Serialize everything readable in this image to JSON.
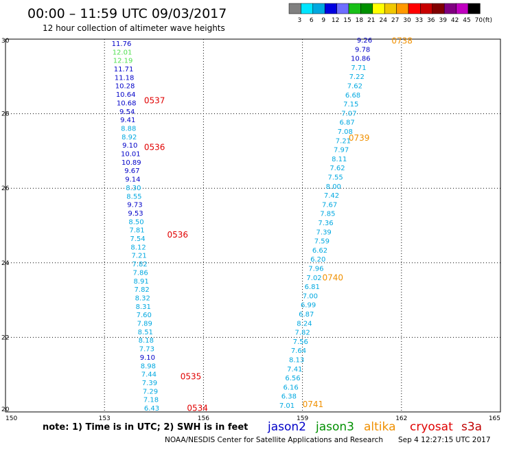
{
  "header": {
    "title": "00:00 – 11:59 UTC 09/03/2017",
    "subtitle": "12 hour collection of altimeter wave heights"
  },
  "color_scale": {
    "colors": [
      "#808080",
      "#00e5ff",
      "#00a8e0",
      "#0000e0",
      "#6e6eff",
      "#18c018",
      "#009000",
      "#ffff00",
      "#f0c800",
      "#ff9900",
      "#ff0000",
      "#c80000",
      "#800000",
      "#800080",
      "#c000c0",
      "#000000"
    ],
    "labels": [
      "3",
      "6",
      "9",
      "12",
      "15",
      "18",
      "21",
      "24",
      "27",
      "30",
      "33",
      "36",
      "39",
      "42",
      "45",
      "70"
    ],
    "unit": "(ft)"
  },
  "map": {
    "x_ticks": [
      "150",
      "153",
      "156",
      "159",
      "162",
      "165"
    ],
    "y_ticks": [
      "30",
      "28",
      "26",
      "24",
      "22",
      "20"
    ]
  },
  "tracks": [
    {
      "values": [
        [
          "11.76",
          "#0000c8"
        ],
        [
          "12.01",
          "#50e050"
        ],
        [
          "12.19",
          "#50e050"
        ],
        [
          "11.71",
          "#0000c8"
        ],
        [
          "11.18",
          "#0000c8"
        ],
        [
          "10.28",
          "#0000c8"
        ],
        [
          "10.64",
          "#0000c8"
        ],
        [
          "10.68",
          "#0000c8"
        ],
        [
          "9.54",
          "#0000c8"
        ],
        [
          "9.41",
          "#0000c8"
        ],
        [
          "8.88",
          "#00a8e0"
        ],
        [
          "8.92",
          "#00a8e0"
        ],
        [
          "9.10",
          "#0000c8"
        ],
        [
          "10.01",
          "#0000c8"
        ],
        [
          "10.89",
          "#0000c8"
        ],
        [
          "9.67",
          "#0000c8"
        ],
        [
          "9.14",
          "#0000c8"
        ],
        [
          "8.30",
          "#00a8e0"
        ],
        [
          "8.55",
          "#00a8e0"
        ],
        [
          "9.73",
          "#0000c8"
        ],
        [
          "9.53",
          "#0000c8"
        ],
        [
          "8.50",
          "#00a8e0"
        ],
        [
          "7.81",
          "#00a8e0"
        ],
        [
          "7.54",
          "#00a8e0"
        ],
        [
          "8.12",
          "#00a8e0"
        ],
        [
          "7.21",
          "#00a8e0"
        ],
        [
          "7.82",
          "#00a8e0"
        ],
        [
          "7.86",
          "#00a8e0"
        ],
        [
          "8.91",
          "#00a8e0"
        ],
        [
          "7.82",
          "#00a8e0"
        ],
        [
          "8.32",
          "#00a8e0"
        ],
        [
          "8.31",
          "#00a8e0"
        ],
        [
          "7.60",
          "#00a8e0"
        ],
        [
          "7.89",
          "#00a8e0"
        ],
        [
          "8.51",
          "#00a8e0"
        ],
        [
          "8.18",
          "#00a8e0"
        ],
        [
          "7.73",
          "#00a8e0"
        ],
        [
          "9.10",
          "#0000c8"
        ],
        [
          "8.98",
          "#00a8e0"
        ],
        [
          "7.44",
          "#00a8e0"
        ],
        [
          "7.39",
          "#00a8e0"
        ],
        [
          "7.29",
          "#00a8e0"
        ],
        [
          "7.18",
          "#00a8e0"
        ],
        [
          "6.43",
          "#00a8e0"
        ]
      ],
      "times": [
        {
          "label": "0537",
          "lat": 28.35,
          "lon": 154.2,
          "color": "#e00000"
        },
        {
          "label": "0536",
          "lat": 27.1,
          "lon": 154.2,
          "color": "#e00000"
        },
        {
          "label": "0536",
          "lat": 24.75,
          "lon": 154.9,
          "color": "#e00000"
        },
        {
          "label": "0535",
          "lat": 20.95,
          "lon": 155.3,
          "color": "#e00000"
        },
        {
          "label": "0534",
          "lat": 20.1,
          "lon": 155.5,
          "color": "#e00000"
        }
      ]
    },
    {
      "values": [
        [
          "9.26",
          "#0000c8"
        ],
        [
          "9.78",
          "#0000c8"
        ],
        [
          "10.86",
          "#0000c8"
        ],
        [
          "7.71",
          "#00a8e0"
        ],
        [
          "7.22",
          "#00a8e0"
        ],
        [
          "7.62",
          "#00a8e0"
        ],
        [
          "6.68",
          "#00a8e0"
        ],
        [
          "7.15",
          "#00a8e0"
        ],
        [
          "7.07",
          "#00a8e0"
        ],
        [
          "6.87",
          "#00a8e0"
        ],
        [
          "7.08",
          "#00a8e0"
        ],
        [
          "7.21",
          "#00a8e0"
        ],
        [
          "7.97",
          "#00a8e0"
        ],
        [
          "8.11",
          "#00a8e0"
        ],
        [
          "7.62",
          "#00a8e0"
        ],
        [
          "7.55",
          "#00a8e0"
        ],
        [
          "8.00",
          "#00a8e0"
        ],
        [
          "7.42",
          "#00a8e0"
        ],
        [
          "7.67",
          "#00a8e0"
        ],
        [
          "7.85",
          "#00a8e0"
        ],
        [
          "7.36",
          "#00a8e0"
        ],
        [
          "7.39",
          "#00a8e0"
        ],
        [
          "7.59",
          "#00a8e0"
        ],
        [
          "6.62",
          "#00a8e0"
        ],
        [
          "6.20",
          "#00a8e0"
        ],
        [
          "7.96",
          "#00a8e0"
        ],
        [
          "7.02",
          "#00a8e0"
        ],
        [
          "6.81",
          "#00a8e0"
        ],
        [
          "7.00",
          "#00a8e0"
        ],
        [
          "6.99",
          "#00a8e0"
        ],
        [
          "6.87",
          "#00a8e0"
        ],
        [
          "8.24",
          "#00a8e0"
        ],
        [
          "7.82",
          "#00a8e0"
        ],
        [
          "7.56",
          "#00a8e0"
        ],
        [
          "7.64",
          "#00a8e0"
        ],
        [
          "8.13",
          "#00a8e0"
        ],
        [
          "7.41",
          "#00a8e0"
        ],
        [
          "6.56",
          "#00a8e0"
        ],
        [
          "6.16",
          "#00a8e0"
        ],
        [
          "6.38",
          "#00a8e0"
        ],
        [
          "7.01",
          "#00a8e0"
        ]
      ],
      "times": [
        {
          "label": "0738",
          "lat": 29.95,
          "lon": 161.7,
          "color": "#f09000"
        },
        {
          "label": "0739",
          "lat": 27.35,
          "lon": 160.4,
          "color": "#f09000"
        },
        {
          "label": "0740",
          "lat": 23.6,
          "lon": 159.6,
          "color": "#f09000"
        },
        {
          "label": "0741",
          "lat": 20.2,
          "lon": 159.0,
          "color": "#f09000"
        }
      ]
    }
  ],
  "footer": {
    "note": "note: 1) Time is in UTC; 2) SWH is in feet",
    "legend": [
      {
        "name": "jason2",
        "color": "#0000c8"
      },
      {
        "name": "jason3",
        "color": "#009000"
      },
      {
        "name": "altika",
        "color": "#f09000"
      },
      {
        "name": "cryosat",
        "color": "#e00000"
      },
      {
        "name": "s3a",
        "color": "#c00000"
      }
    ],
    "credit": "NOAA/NESDIS Center for Satellite Applications and Research",
    "timestamp": "Sep  4 12:27:15 UTC 2017"
  }
}
